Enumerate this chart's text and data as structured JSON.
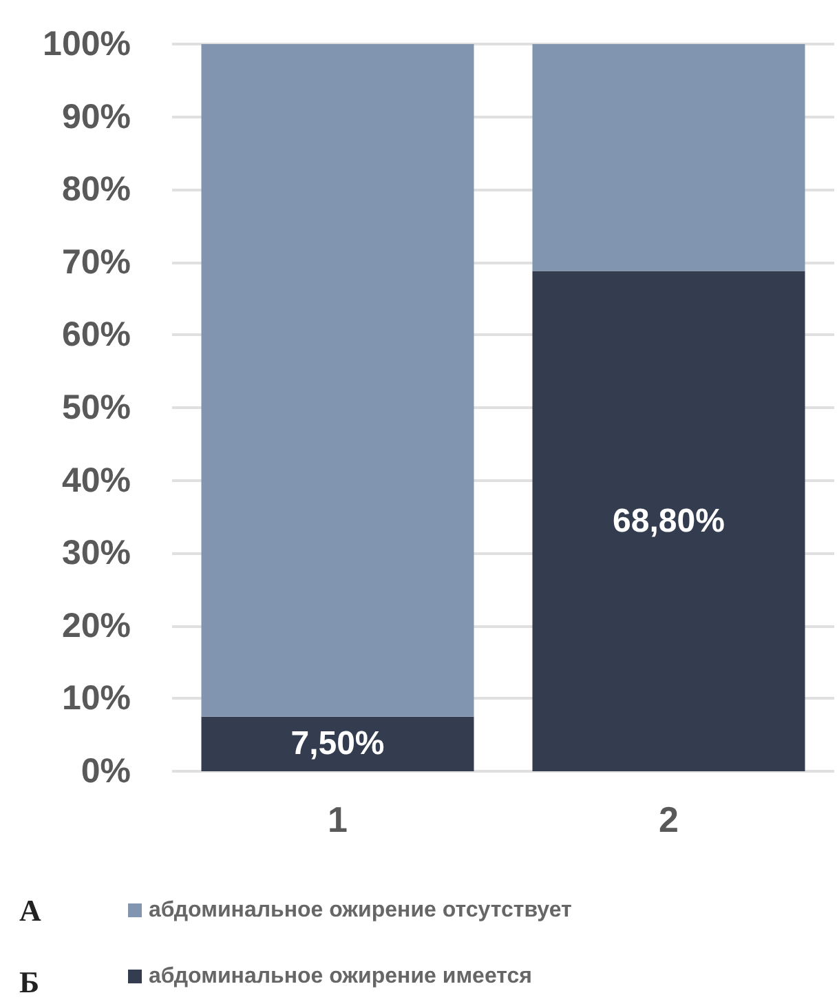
{
  "chart_data": {
    "type": "bar",
    "stacked": true,
    "categories": [
      "1",
      "2"
    ],
    "series": [
      {
        "name": "абдоминальное ожирение имеется",
        "color": "#333d4f",
        "values": [
          7.5,
          68.8
        ],
        "value_labels": [
          "7,50%",
          "68,80%"
        ]
      },
      {
        "name": "абдоминальное ожирение отсутствует",
        "color": "#8295b0",
        "values": [
          92.5,
          31.2
        ]
      }
    ],
    "ylim": [
      0,
      100
    ],
    "yticks": [
      {
        "value": 0,
        "label": "0%"
      },
      {
        "value": 10,
        "label": "10%"
      },
      {
        "value": 20,
        "label": "20%"
      },
      {
        "value": 30,
        "label": "30%"
      },
      {
        "value": 40,
        "label": "40%"
      },
      {
        "value": 50,
        "label": "50%"
      },
      {
        "value": 60,
        "label": "60%"
      },
      {
        "value": 70,
        "label": "70%"
      },
      {
        "value": 80,
        "label": "80%"
      },
      {
        "value": 90,
        "label": "90%"
      },
      {
        "value": 100,
        "label": "100%"
      }
    ],
    "grid": "y",
    "legend": "bottom",
    "annotations": [
      "А",
      "Б"
    ]
  }
}
